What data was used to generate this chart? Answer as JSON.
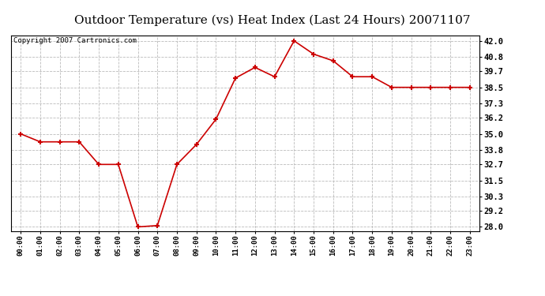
{
  "title": "Outdoor Temperature (vs) Heat Index (Last 24 Hours) 20071107",
  "copyright_text": "Copyright 2007 Cartronics.com",
  "x_labels": [
    "00:00",
    "01:00",
    "02:00",
    "03:00",
    "04:00",
    "05:00",
    "06:00",
    "07:00",
    "08:00",
    "09:00",
    "10:00",
    "11:00",
    "12:00",
    "13:00",
    "14:00",
    "15:00",
    "16:00",
    "17:00",
    "18:00",
    "19:00",
    "20:00",
    "21:00",
    "22:00",
    "23:00"
  ],
  "y_values": [
    35.0,
    34.4,
    34.4,
    34.4,
    32.7,
    32.7,
    28.0,
    28.1,
    32.7,
    34.2,
    36.1,
    39.2,
    40.0,
    39.3,
    42.0,
    41.0,
    40.5,
    39.3,
    39.3,
    38.5,
    38.5,
    38.5,
    38.5,
    38.5
  ],
  "y_ticks": [
    28.0,
    29.2,
    30.3,
    31.5,
    32.7,
    33.8,
    35.0,
    36.2,
    37.3,
    38.5,
    39.7,
    40.8,
    42.0
  ],
  "ylim": [
    27.7,
    42.4
  ],
  "line_color": "#cc0000",
  "marker_color": "#cc0000",
  "background_color": "#ffffff",
  "grid_color": "#bbbbbb",
  "title_fontsize": 11,
  "copyright_fontsize": 6.5
}
